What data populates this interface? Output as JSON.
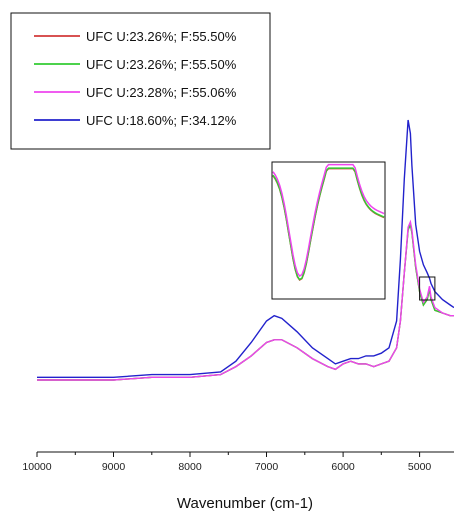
{
  "chart_data": {
    "type": "line",
    "title": "",
    "xlabel": "Wavenumber (cm-1)",
    "ylabel": "",
    "x_reversed": true,
    "xlim": [
      10000,
      4550
    ],
    "ylim": [
      0,
      1
    ],
    "x_ticks": [
      10000,
      9000,
      8000,
      7000,
      6000,
      5000
    ],
    "x_tick_labels": [
      "10000",
      "9000",
      "8000",
      "7000",
      "6000",
      "5000"
    ],
    "legend_position": "top-left",
    "grid": false,
    "colors": {
      "red": "#d33a3a",
      "green": "#33cc33",
      "magenta": "#ee44ee",
      "blue": "#2222cc"
    },
    "inset": {
      "description_hidden": true,
      "zoom_x_range": [
        5000,
        4800
      ]
    },
    "series": [
      {
        "name": "UFC U:23.26%; F:55.50%",
        "color": "#d33a3a",
        "x": [
          10000,
          9500,
          9000,
          8500,
          8000,
          7600,
          7400,
          7200,
          7000,
          6900,
          6800,
          6600,
          6400,
          6200,
          6100,
          6000,
          5900,
          5800,
          5700,
          5600,
          5500,
          5400,
          5300,
          5250,
          5200,
          5150,
          5120,
          5100,
          5050,
          5000,
          4950,
          4900,
          4870,
          4850,
          4800,
          4700,
          4600,
          4550
        ],
        "y": [
          0.0,
          0.0,
          0.0,
          0.01,
          0.01,
          0.02,
          0.05,
          0.09,
          0.14,
          0.15,
          0.15,
          0.12,
          0.08,
          0.05,
          0.04,
          0.06,
          0.07,
          0.06,
          0.06,
          0.05,
          0.06,
          0.07,
          0.12,
          0.22,
          0.4,
          0.56,
          0.58,
          0.55,
          0.42,
          0.33,
          0.28,
          0.3,
          0.34,
          0.3,
          0.26,
          0.25,
          0.24,
          0.24
        ]
      },
      {
        "name": "UFC U:23.26%; F:55.50%",
        "color": "#33cc33",
        "x": [
          10000,
          9500,
          9000,
          8500,
          8000,
          7600,
          7400,
          7200,
          7000,
          6900,
          6800,
          6600,
          6400,
          6200,
          6100,
          6000,
          5900,
          5800,
          5700,
          5600,
          5500,
          5400,
          5300,
          5250,
          5200,
          5150,
          5120,
          5100,
          5050,
          5000,
          4950,
          4900,
          4870,
          4850,
          4800,
          4700,
          4600,
          4550
        ],
        "y": [
          0.0,
          0.0,
          0.0,
          0.01,
          0.01,
          0.02,
          0.05,
          0.09,
          0.14,
          0.15,
          0.15,
          0.12,
          0.08,
          0.05,
          0.04,
          0.06,
          0.07,
          0.06,
          0.06,
          0.05,
          0.06,
          0.07,
          0.12,
          0.22,
          0.4,
          0.56,
          0.58,
          0.55,
          0.42,
          0.33,
          0.28,
          0.3,
          0.34,
          0.3,
          0.26,
          0.25,
          0.24,
          0.24
        ]
      },
      {
        "name": "UFC U:23.28%; F:55.06%",
        "color": "#ee44ee",
        "x": [
          10000,
          9500,
          9000,
          8500,
          8000,
          7600,
          7400,
          7200,
          7000,
          6900,
          6800,
          6600,
          6400,
          6200,
          6100,
          6000,
          5900,
          5800,
          5700,
          5600,
          5500,
          5400,
          5300,
          5250,
          5200,
          5150,
          5120,
          5100,
          5050,
          5000,
          4950,
          4900,
          4870,
          4850,
          4800,
          4700,
          4600,
          4550
        ],
        "y": [
          0.0,
          0.0,
          0.0,
          0.01,
          0.01,
          0.02,
          0.05,
          0.09,
          0.14,
          0.15,
          0.15,
          0.12,
          0.08,
          0.05,
          0.04,
          0.06,
          0.07,
          0.06,
          0.06,
          0.05,
          0.06,
          0.07,
          0.12,
          0.22,
          0.4,
          0.57,
          0.59,
          0.56,
          0.43,
          0.34,
          0.29,
          0.31,
          0.35,
          0.31,
          0.27,
          0.25,
          0.24,
          0.24
        ]
      },
      {
        "name": "UFC U:18.60%; F:34.12%",
        "color": "#2222cc",
        "x": [
          10000,
          9500,
          9000,
          8500,
          8000,
          7600,
          7400,
          7200,
          7000,
          6900,
          6800,
          6600,
          6400,
          6200,
          6100,
          6000,
          5900,
          5800,
          5700,
          5600,
          5500,
          5400,
          5300,
          5250,
          5200,
          5150,
          5120,
          5100,
          5050,
          5000,
          4950,
          4900,
          4870,
          4850,
          4800,
          4700,
          4600,
          4550
        ],
        "y": [
          0.01,
          0.01,
          0.01,
          0.02,
          0.02,
          0.03,
          0.07,
          0.14,
          0.22,
          0.24,
          0.23,
          0.18,
          0.12,
          0.08,
          0.06,
          0.07,
          0.08,
          0.08,
          0.09,
          0.09,
          0.1,
          0.12,
          0.22,
          0.45,
          0.75,
          0.97,
          0.92,
          0.8,
          0.58,
          0.48,
          0.43,
          0.4,
          0.38,
          0.36,
          0.33,
          0.3,
          0.28,
          0.27
        ]
      }
    ]
  }
}
